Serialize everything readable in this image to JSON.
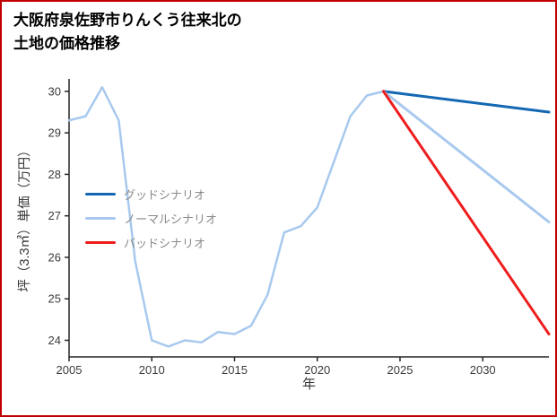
{
  "page": {
    "title_line1": "大阪府泉佐野市りんくう往来北の",
    "title_line2": "土地の価格推移",
    "border_color": "#c00000"
  },
  "chart_data": {
    "type": "line",
    "title": "大阪府泉佐野市りんくう往来北の土地の価格推移",
    "xlabel": "年",
    "ylabel": "坪（3.3㎡）単価（万円）",
    "xlim": [
      2005,
      2034
    ],
    "ylim": [
      23.6,
      30.3
    ],
    "xticks": [
      2005,
      2010,
      2015,
      2020,
      2025,
      2030
    ],
    "yticks": [
      24,
      25,
      26,
      27,
      28,
      29,
      30
    ],
    "grid": false,
    "legend_position": "middle-left",
    "colors": {
      "history": "#a8c9ee",
      "good": "#1468b3",
      "normal": "#a8c9ee",
      "bad": "#ee1d1d",
      "axis": "#262626",
      "tick_label": "#3b3b3b",
      "legend_label": "#8a8a8a"
    },
    "series": [
      {
        "key": "history",
        "label": "",
        "color_key": "history",
        "width": 2.5,
        "x": [
          2005,
          2006,
          2007,
          2008,
          2009,
          2010,
          2011,
          2012,
          2013,
          2014,
          2015,
          2016,
          2017,
          2018,
          2019,
          2020,
          2021,
          2022,
          2023,
          2024
        ],
        "values": [
          29.3,
          29.4,
          30.1,
          29.3,
          25.9,
          24.0,
          23.85,
          24.0,
          23.95,
          24.2,
          24.15,
          24.35,
          25.1,
          26.6,
          26.75,
          27.2,
          28.3,
          29.4,
          29.9,
          30.0
        ]
      },
      {
        "key": "good",
        "label": "グッドシナリオ",
        "color_key": "good",
        "width": 3,
        "x": [
          2024,
          2034
        ],
        "values": [
          30.0,
          29.5
        ]
      },
      {
        "key": "normal",
        "label": "ノーマルシナリオ",
        "color_key": "normal",
        "width": 3,
        "x": [
          2024,
          2034
        ],
        "values": [
          30.0,
          26.85
        ]
      },
      {
        "key": "bad",
        "label": "バッドシナリオ",
        "color_key": "bad",
        "width": 3,
        "x": [
          2024,
          2034
        ],
        "values": [
          30.0,
          24.15
        ]
      }
    ],
    "legend": [
      {
        "label": "グッドシナリオ",
        "color_key": "good"
      },
      {
        "label": "ノーマルシナリオ",
        "color_key": "normal"
      },
      {
        "label": "バッドシナリオ",
        "color_key": "bad"
      }
    ]
  }
}
